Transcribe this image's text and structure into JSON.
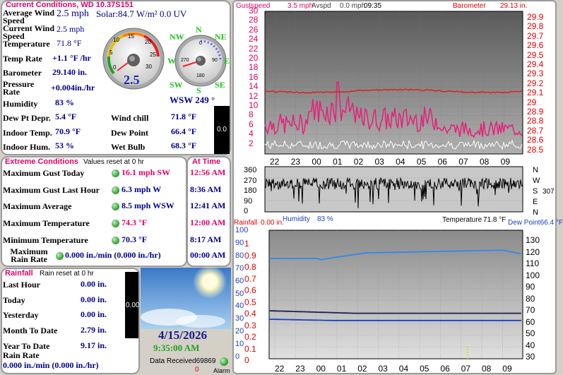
{
  "current": {
    "title": "Current Conditions, WD 10.37S151",
    "avg_wind_label": "Average Wind Speed",
    "avg_wind_value": "2.5 mph",
    "solar": "Solar:84.7 W/m² 0.0 UV",
    "cur_wind_label": "Current Wind Speed",
    "cur_wind_value": "2.5 mph",
    "temp_label": "Temperature",
    "temp_value": "71.8 °F",
    "temp_rate_label": "Temp Rate",
    "temp_rate_value": "+1.1 °F /hr",
    "baro_label": "Barometer",
    "baro_value": "29.140 in.",
    "press_rate_label": "Pressure Rate",
    "press_rate_value": "+0.004in./hr",
    "humidity_label": "Humidity",
    "humidity_value": "83 %",
    "dew_depr_label": "Dew Pt Depr.",
    "dew_depr_value": "5.4 °F",
    "indoor_temp_label": "Indoor Temp.",
    "indoor_temp_value": "70.9 °F",
    "indoor_hum_label": "Indoor Hum.",
    "indoor_hum_value": "53 %",
    "wind_chill_label": "Wind chill",
    "wind_chill_value": "71.8 °F",
    "dew_point_label": "Dew Point",
    "dew_point_value": "66.4 °F",
    "wet_bulb_label": "Wet Bulb",
    "wet_bulb_value": "68.3 °F",
    "wind_dir_value": "WSW  249 °",
    "gauge_value": "2.5",
    "bar_value": "0.0",
    "compass": {
      "n": "N",
      "ne": "NE",
      "e": "E",
      "se": "SE",
      "s": "S",
      "sw": "SW",
      "w": "W",
      "nw": "NW"
    },
    "speed_ticks": [
      "0",
      "5",
      "10",
      "15",
      "20",
      "25",
      "30"
    ],
    "dir_ticks": [
      "0",
      "90",
      "180",
      "270"
    ]
  },
  "extreme": {
    "title": "Extreme Conditions",
    "subtitle": "Values reset at 0 hr",
    "at_time_title": "At Time",
    "rows": [
      {
        "label": "Maximum Gust Today",
        "value": "16.1 mph  SW",
        "time": "12:56 AM"
      },
      {
        "label": "Maximum Gust Last Hour",
        "value": "6.3 mph  W",
        "time": "8:36 AM"
      },
      {
        "label": "Maximum Average",
        "value": "8.5 mph WSW",
        "time": "12:41 AM"
      },
      {
        "label": "Maximum Temperature",
        "value": "74.3 °F",
        "time": "12:00 AM"
      },
      {
        "label": "Minimum Temperature",
        "value": "70.3 °F",
        "time": "8:17 AM"
      },
      {
        "label": "Maximum Rain Rate",
        "value": "0.000 in./min (0.000 in./hr)",
        "time": "00:00 AM"
      }
    ]
  },
  "rainfall": {
    "title": "Rainfall",
    "subtitle": "Rain reset at 0 hr",
    "rows": [
      {
        "label": "Last Hour",
        "value": "0.00 in."
      },
      {
        "label": "Today",
        "value": "0.00 in."
      },
      {
        "label": "Yesterday",
        "value": "0.00 in."
      },
      {
        "label": "Month To Date",
        "value": "2.79 in."
      },
      {
        "label": "Year To Date",
        "value": "9.17 in."
      }
    ],
    "rain_rate_label": "Rain Rate",
    "rain_rate_value": "0.000 in./min (0.000 in./hr)",
    "bar_value": "0.00"
  },
  "status": {
    "date": "4/15/2026",
    "time": "9:35:00 AM",
    "data_received": "Data Received69869",
    "alarm_count": "0",
    "alarm_label": "Alarm"
  },
  "graph_top": {
    "gust_label": "Gustspeed",
    "gust_value": "3.5 mph",
    "avg_label": "Avspd",
    "avg_value": "0.0 mph",
    "time_value": "09:35",
    "baro_label": "Barometer",
    "baro_value": "29.13 in.",
    "left_ticks": [
      "30",
      "28",
      "26",
      "24",
      "22",
      "20",
      "18",
      "16",
      "14",
      "12",
      "10",
      "8",
      "6",
      "4",
      "2"
    ],
    "right_ticks": [
      "29.9",
      "29.8",
      "29.7",
      "29.6",
      "29.5",
      "29.4",
      "29.3",
      "29.2",
      "29.1",
      "29",
      "28.9",
      "28.8",
      "28.7",
      "28.6",
      "28.5"
    ],
    "colors": {
      "gust": "#e8207a",
      "avg": "#ffffff",
      "baro": "#e02020"
    }
  },
  "graph_dir": {
    "left_ticks": [
      "360",
      "270",
      "180",
      "90",
      "0"
    ],
    "right_letters": [
      "N",
      "W",
      "S",
      "E",
      "N"
    ],
    "dir_value": "307",
    "temp_label": "Temperature",
    "temp_value": "71.8 °F"
  },
  "graph_bottom": {
    "rain_label": "Rainfall",
    "rain_value": "0.00 in.",
    "hum_label": "Humidity",
    "hum_value": "83 %",
    "dew_label": "Dew Point66.4 °F",
    "left_ticks_rain": [
      "1",
      "0.9",
      "0.8",
      "0.7",
      "0.6",
      "0.5",
      "0.4",
      "0.3",
      "0.2",
      "0.1",
      "0"
    ],
    "left_ticks_hum": [
      "100",
      "90",
      "80",
      "70",
      "60",
      "50",
      "40",
      "30",
      "20",
      "10",
      "0"
    ],
    "right_ticks": [
      "130",
      "120",
      "110",
      "100",
      "90",
      "80",
      "70",
      "60",
      "50",
      "40",
      "30"
    ],
    "colors": {
      "temp": "#3388ee",
      "dew": "#202050",
      "hum": "#1a40c0"
    }
  },
  "time_ticks": [
    "22",
    "23",
    "00",
    "01",
    "02",
    "03",
    "04",
    "05",
    "06",
    "07",
    "08",
    "09"
  ]
}
